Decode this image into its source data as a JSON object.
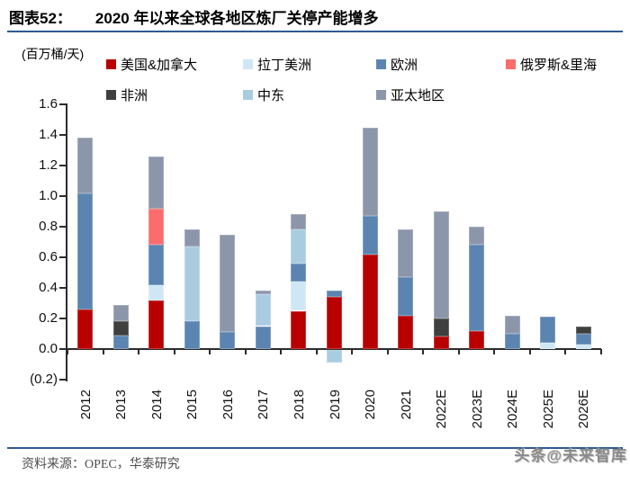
{
  "header": {
    "figure_label": "图表52：",
    "title": "2020 年以来全球各地区炼厂关停产能增多"
  },
  "chart_data": {
    "type": "bar",
    "stacked": true,
    "unit_label": "(百万桶/天)",
    "categories": [
      "2012",
      "2013",
      "2014",
      "2015",
      "2016",
      "2017",
      "2018",
      "2019",
      "2020",
      "2021",
      "2022E",
      "2023E",
      "2024E",
      "2025E",
      "2026E"
    ],
    "series": [
      {
        "name": "美国&加拿大",
        "color": "#B80000",
        "values": [
          0.26,
          0,
          0.32,
          0,
          0,
          0,
          0.25,
          0.34,
          0.62,
          0.22,
          0.08,
          0.12,
          0,
          0,
          0
        ]
      },
      {
        "name": "拉丁美洲",
        "color": "#CFE7F5",
        "values": [
          0,
          0,
          0.1,
          0,
          0,
          0,
          0.19,
          0,
          0,
          0,
          0,
          0,
          0,
          0.04,
          0.03
        ]
      },
      {
        "name": "欧洲",
        "color": "#5B84B1",
        "values": [
          0.76,
          0.09,
          0.26,
          0.18,
          0.11,
          0.15,
          0.12,
          0.04,
          0.25,
          0.25,
          0,
          0.56,
          0.1,
          0.17,
          0.07
        ]
      },
      {
        "name": "俄罗斯&里海",
        "color": "#FB6D6D",
        "values": [
          0,
          0,
          0.24,
          0,
          0,
          0,
          0,
          0,
          0,
          0,
          0,
          0,
          0,
          0,
          0
        ]
      },
      {
        "name": "非洲",
        "color": "#3F3F3F",
        "values": [
          0,
          0.09,
          0,
          0,
          0,
          0,
          0,
          0,
          0,
          0,
          0.12,
          0,
          0,
          0,
          0.05
        ]
      },
      {
        "name": "中东",
        "color": "#A9CCE0",
        "values": [
          0,
          0,
          0,
          0.49,
          0,
          0.21,
          0.22,
          -0.08,
          0,
          0,
          0,
          0,
          0,
          0,
          0
        ]
      },
      {
        "name": "亚太地区",
        "color": "#8C96AB",
        "values": [
          0.36,
          0.11,
          0.34,
          0.11,
          0.64,
          0.02,
          0.1,
          0,
          0.58,
          0.31,
          0.7,
          0.12,
          0.12,
          0,
          0
        ]
      }
    ],
    "y_tick_labels": [
      "1.6",
      "1.4",
      "1.2",
      "1.0",
      "0.8",
      "0.6",
      "0.4",
      "0.2",
      "0.0",
      "(0.2)"
    ],
    "ylim": [
      -0.2,
      1.6
    ],
    "grid": false,
    "legend_position": "top"
  },
  "footer": {
    "source": "资料来源：OPEC，华泰研究"
  },
  "watermark": {
    "text": "头条@未来智库"
  }
}
